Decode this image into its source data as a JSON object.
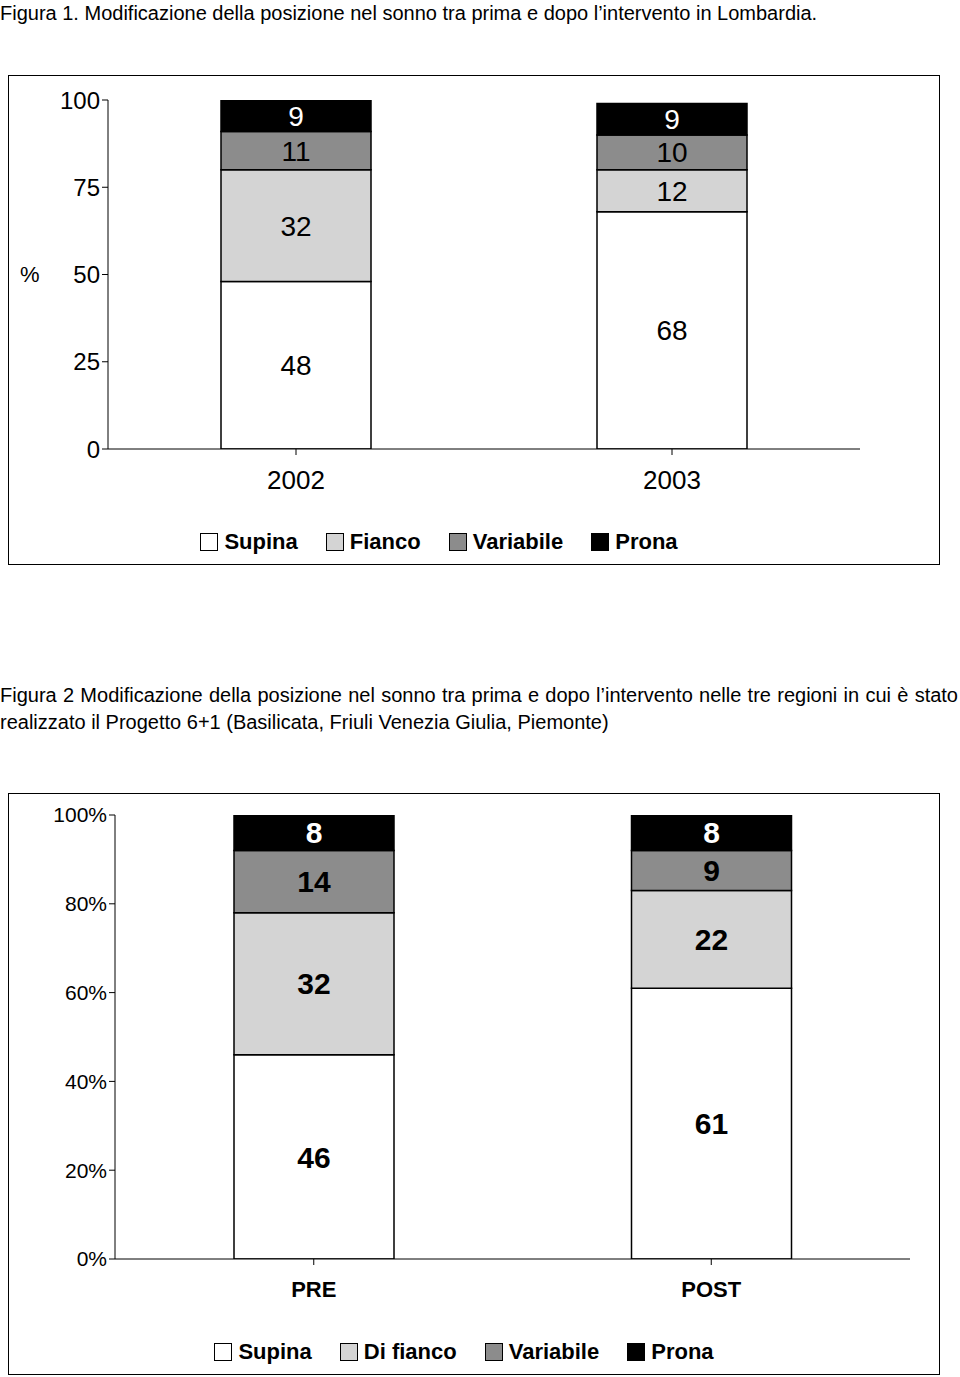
{
  "chart_data": [
    {
      "type": "bar",
      "title": "Figura 1. Modificazione della posizione nel sonno tra prima e dopo l’intervento in Lombardia.",
      "ylabel": "%",
      "categories": [
        "2002",
        "2003"
      ],
      "series": [
        {
          "name": "Supina",
          "color": "#ffffff",
          "values": [
            48,
            68
          ]
        },
        {
          "name": "Fianco",
          "color": "#d4d4d4",
          "values": [
            32,
            12
          ]
        },
        {
          "name": "Variabile",
          "color": "#8c8c8c",
          "values": [
            11,
            10
          ]
        },
        {
          "name": "Prona",
          "color": "#000000",
          "values": [
            9,
            9
          ]
        }
      ],
      "stacked": true,
      "data_labels": true,
      "legend": "bottom",
      "grid": false,
      "ylim": [
        0,
        100
      ],
      "yticks": [
        0,
        25,
        50,
        75,
        100
      ]
    },
    {
      "type": "bar",
      "title": "Figura 2 Modificazione della posizione nel sonno tra prima e dopo l’intervento nelle tre regioni in cui è stato realizzato il Progetto 6+1 (Basilicata, Friuli Venezia Giulia, Piemonte)",
      "categories": [
        "PRE",
        "POST"
      ],
      "series": [
        {
          "name": "Supina",
          "color": "#ffffff",
          "values": [
            46,
            61
          ]
        },
        {
          "name": "Di fianco",
          "color": "#d4d4d4",
          "values": [
            32,
            22
          ]
        },
        {
          "name": "Variabile",
          "color": "#8c8c8c",
          "values": [
            14,
            9
          ]
        },
        {
          "name": "Prona",
          "color": "#000000",
          "values": [
            8,
            8
          ]
        }
      ],
      "stacked": true,
      "data_labels": true,
      "legend": "bottom",
      "grid": false,
      "ylim": [
        0,
        100
      ],
      "yticks": [
        {
          "value": 0,
          "label": "0%"
        },
        {
          "value": 20,
          "label": "20%"
        },
        {
          "value": 40,
          "label": "40%"
        },
        {
          "value": 60,
          "label": "60%"
        },
        {
          "value": 80,
          "label": "80%"
        },
        {
          "value": 100,
          "label": "100%"
        }
      ]
    }
  ]
}
